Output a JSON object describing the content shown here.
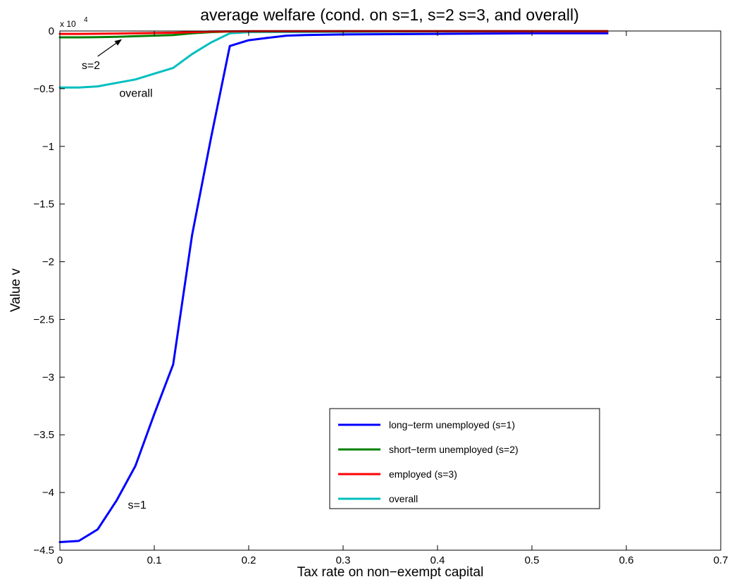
{
  "chart_data": {
    "type": "line",
    "title": "average welfare (cond. on s=1, s=2 s=3, and overall)",
    "xlabel": "Tax rate on non−exempt capital",
    "ylabel": "Value v",
    "xlim": [
      0,
      0.7
    ],
    "ylim": [
      -4.5,
      0
    ],
    "y_multiplier": "x 10",
    "y_multiplier_exponent": "4",
    "x_ticks": [
      0,
      0.1,
      0.2,
      0.3,
      0.4,
      0.5,
      0.6,
      0.7
    ],
    "x_tick_labels": [
      "0",
      "0.1",
      "0.2",
      "0.3",
      "0.4",
      "0.5",
      "0.6",
      "0.7"
    ],
    "y_ticks": [
      0,
      -0.5,
      -1,
      -1.5,
      -2,
      -2.5,
      -3,
      -3.5,
      -4,
      -4.5
    ],
    "y_tick_labels": [
      "0",
      "−0.5",
      "−1",
      "−1.5",
      "−2",
      "−2.5",
      "−3",
      "−3.5",
      "−4",
      "−4.5"
    ],
    "grid": false,
    "legend_placement": "lower-right",
    "series": [
      {
        "name": "long−term unemployed (s=1)",
        "color": "#0000ff",
        "x": [
          0,
          0.02,
          0.04,
          0.06,
          0.08,
          0.1,
          0.12,
          0.14,
          0.16,
          0.18,
          0.2,
          0.22,
          0.24,
          0.26,
          0.3,
          0.4,
          0.5,
          0.58
        ],
        "y": [
          -4.43,
          -4.42,
          -4.32,
          -4.07,
          -3.77,
          -3.32,
          -2.89,
          -1.77,
          -0.93,
          -0.13,
          -0.08,
          -0.06,
          -0.04,
          -0.035,
          -0.03,
          -0.025,
          -0.02,
          -0.02
        ]
      },
      {
        "name": "short−term unemployed (s=2)",
        "color": "#007f00",
        "x": [
          0,
          0.02,
          0.04,
          0.06,
          0.08,
          0.1,
          0.12,
          0.14,
          0.16,
          0.18,
          0.2,
          0.3,
          0.4,
          0.5,
          0.58
        ],
        "y": [
          -0.055,
          -0.055,
          -0.054,
          -0.05,
          -0.045,
          -0.04,
          -0.035,
          -0.02,
          -0.01,
          -0.005,
          -0.003,
          -0.002,
          -0.002,
          -0.001,
          -0.001
        ]
      },
      {
        "name": "employed (s=3)",
        "color": "#ff0000",
        "x": [
          0,
          0.02,
          0.04,
          0.06,
          0.08,
          0.1,
          0.12,
          0.14,
          0.16,
          0.18,
          0.2,
          0.3,
          0.4,
          0.5,
          0.58
        ],
        "y": [
          -0.025,
          -0.025,
          -0.024,
          -0.022,
          -0.02,
          -0.018,
          -0.015,
          -0.01,
          -0.005,
          -0.003,
          -0.002,
          -0.001,
          -0.001,
          -0.001,
          -0.001
        ]
      },
      {
        "name": "overall",
        "color": "#00bfbf",
        "x": [
          0,
          0.02,
          0.04,
          0.06,
          0.08,
          0.1,
          0.12,
          0.14,
          0.16,
          0.18,
          0.2,
          0.3,
          0.4,
          0.5,
          0.58
        ],
        "y": [
          -0.49,
          -0.49,
          -0.48,
          -0.45,
          -0.42,
          -0.37,
          -0.32,
          -0.2,
          -0.1,
          -0.02,
          -0.01,
          -0.008,
          -0.005,
          -0.005,
          -0.005
        ]
      }
    ],
    "annotations": [
      {
        "text": "s=2",
        "x": 0.023,
        "y": -0.33
      },
      {
        "text": "overall",
        "x": 0.063,
        "y": -0.57
      },
      {
        "text": "s=1",
        "x": 0.072,
        "y": -4.14
      }
    ],
    "arrow": {
      "from": [
        0.04,
        -0.22
      ],
      "to": [
        0.065,
        -0.075
      ]
    }
  }
}
